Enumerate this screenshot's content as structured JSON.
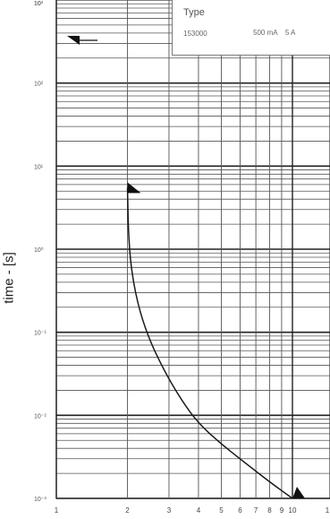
{
  "chart_data": {
    "type": "line",
    "ylabel": "time - [s]",
    "xlabel": "",
    "x_scale": "log",
    "y_scale": "log",
    "xlim": [
      1,
      10
    ],
    "ylim": [
      0.001,
      1000
    ],
    "x_tick_labels": [
      "1",
      "2",
      "3",
      "4",
      "5",
      "6",
      "7",
      "8",
      "9",
      "10",
      "1"
    ],
    "y_tick_labels": [
      "10⁻³",
      "10⁻²",
      "10⁻¹",
      "10⁰",
      "10¹",
      "10²",
      "10³",
      "10"
    ],
    "grid": true,
    "legend_title": "Type",
    "legend_code": "153000",
    "legend_ratings": [
      "500 mA",
      "5 A"
    ],
    "series": [
      {
        "x": [
          2.0,
          2.03,
          2.15,
          2.4,
          2.85,
          3.4,
          4.0,
          5.0,
          6.5,
          8.2,
          10.0
        ],
        "y": [
          5.5,
          1.0,
          0.3,
          0.1,
          0.035,
          0.015,
          0.008,
          0.0045,
          0.0025,
          0.0015,
          0.001
        ]
      }
    ],
    "colors": {
      "line": "#1a1a1a",
      "grid": "#555555",
      "marker": "#111111"
    }
  }
}
